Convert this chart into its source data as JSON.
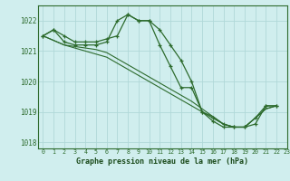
{
  "title": "Graphe pression niveau de la mer (hPa)",
  "background_color": "#d0eeee",
  "grid_color": "#b0d8d8",
  "line_color": "#2d6b2d",
  "xlim": [
    -0.5,
    23
  ],
  "ylim": [
    1017.8,
    1022.5
  ],
  "yticks": [
    1018,
    1019,
    1020,
    1021,
    1022
  ],
  "xticks": [
    0,
    1,
    2,
    3,
    4,
    5,
    6,
    7,
    8,
    9,
    10,
    11,
    12,
    13,
    14,
    15,
    16,
    17,
    18,
    19,
    20,
    21,
    22,
    23
  ],
  "series": [
    {
      "x": [
        0,
        1,
        2,
        3,
        4,
        5,
        6,
        7,
        8,
        9,
        10,
        11,
        12,
        13,
        14,
        15,
        16,
        17,
        18,
        19,
        20,
        21,
        22
      ],
      "y": [
        1021.5,
        1021.7,
        1021.5,
        1021.3,
        1021.3,
        1021.3,
        1021.4,
        1021.5,
        1022.2,
        1022.0,
        1022.0,
        1021.7,
        1021.2,
        1020.7,
        1020.0,
        1019.0,
        1018.7,
        1018.5,
        1018.5,
        1018.5,
        1018.6,
        1019.2,
        1019.2
      ],
      "marker": true
    },
    {
      "x": [
        0,
        1,
        2,
        3,
        4,
        5,
        6,
        7,
        8,
        9,
        10,
        11,
        12,
        13,
        14,
        15,
        16,
        17,
        18,
        19,
        20,
        21,
        22
      ],
      "y": [
        1021.5,
        1021.7,
        1021.3,
        1021.2,
        1021.2,
        1021.2,
        1021.3,
        1022.0,
        1022.2,
        1022.0,
        1022.0,
        1021.2,
        1020.5,
        1019.8,
        1019.8,
        1019.0,
        1018.8,
        1018.6,
        1018.5,
        1018.5,
        1018.8,
        1019.2,
        1019.2
      ],
      "marker": true
    },
    {
      "x": [
        0,
        2,
        3,
        4,
        5,
        6,
        7,
        8,
        9,
        10,
        11,
        12,
        13,
        14,
        15,
        16,
        17,
        18,
        19,
        20,
        21,
        22
      ],
      "y": [
        1021.5,
        1021.2,
        1021.15,
        1021.1,
        1021.05,
        1020.95,
        1020.75,
        1020.55,
        1020.35,
        1020.15,
        1019.95,
        1019.75,
        1019.55,
        1019.35,
        1019.1,
        1018.85,
        1018.6,
        1018.5,
        1018.5,
        1018.8,
        1019.1,
        1019.2
      ],
      "marker": false
    },
    {
      "x": [
        0,
        2,
        3,
        4,
        5,
        6,
        7,
        8,
        9,
        10,
        11,
        12,
        13,
        14,
        15,
        16,
        17,
        18,
        19,
        20,
        21,
        22
      ],
      "y": [
        1021.5,
        1021.2,
        1021.1,
        1021.0,
        1020.9,
        1020.8,
        1020.6,
        1020.4,
        1020.2,
        1020.0,
        1019.8,
        1019.6,
        1019.4,
        1019.2,
        1019.0,
        1018.85,
        1018.6,
        1018.5,
        1018.5,
        1018.8,
        1019.1,
        1019.2
      ],
      "marker": false
    }
  ]
}
